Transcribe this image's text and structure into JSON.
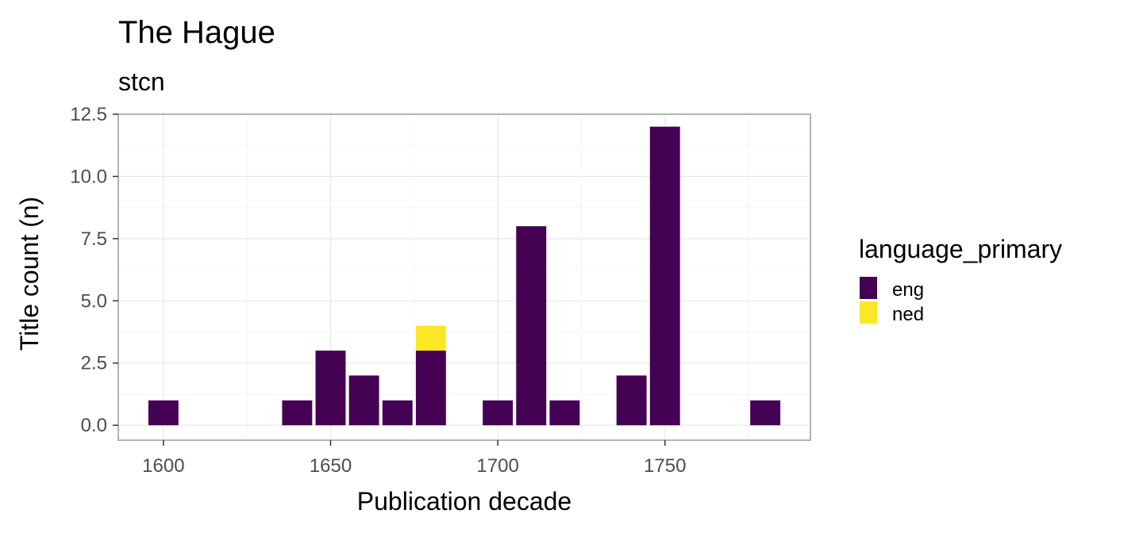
{
  "chart_data": {
    "type": "bar",
    "stacked": true,
    "title": "The Hague",
    "subtitle": "stcn",
    "xlabel": "Publication decade",
    "ylabel": "Title count (n)",
    "xlim": [
      1586.5,
      1793.5
    ],
    "ylim": [
      -0.6,
      12.5
    ],
    "x_ticks": [
      1600,
      1650,
      1700,
      1750
    ],
    "x_tick_labels": [
      "1600",
      "1650",
      "1700",
      "1750"
    ],
    "y_ticks": [
      0,
      2.5,
      5,
      7.5,
      10,
      12.5
    ],
    "y_tick_labels": [
      "0.0",
      "2.5",
      "5.0",
      "7.5",
      "10.0",
      "12.5"
    ],
    "grid": true,
    "legend": {
      "title": "language_primary",
      "position": "right"
    },
    "series": [
      {
        "name": "eng",
        "color": "#440154",
        "points": [
          {
            "x": 1600,
            "y": 1
          },
          {
            "x": 1640,
            "y": 1
          },
          {
            "x": 1650,
            "y": 3
          },
          {
            "x": 1660,
            "y": 2
          },
          {
            "x": 1670,
            "y": 1
          },
          {
            "x": 1680,
            "y": 3
          },
          {
            "x": 1700,
            "y": 1
          },
          {
            "x": 1710,
            "y": 8
          },
          {
            "x": 1720,
            "y": 1
          },
          {
            "x": 1740,
            "y": 2
          },
          {
            "x": 1750,
            "y": 12
          },
          {
            "x": 1780,
            "y": 1
          }
        ]
      },
      {
        "name": "ned",
        "color": "#FDE725",
        "points": [
          {
            "x": 1680,
            "y": 1
          }
        ]
      }
    ]
  }
}
